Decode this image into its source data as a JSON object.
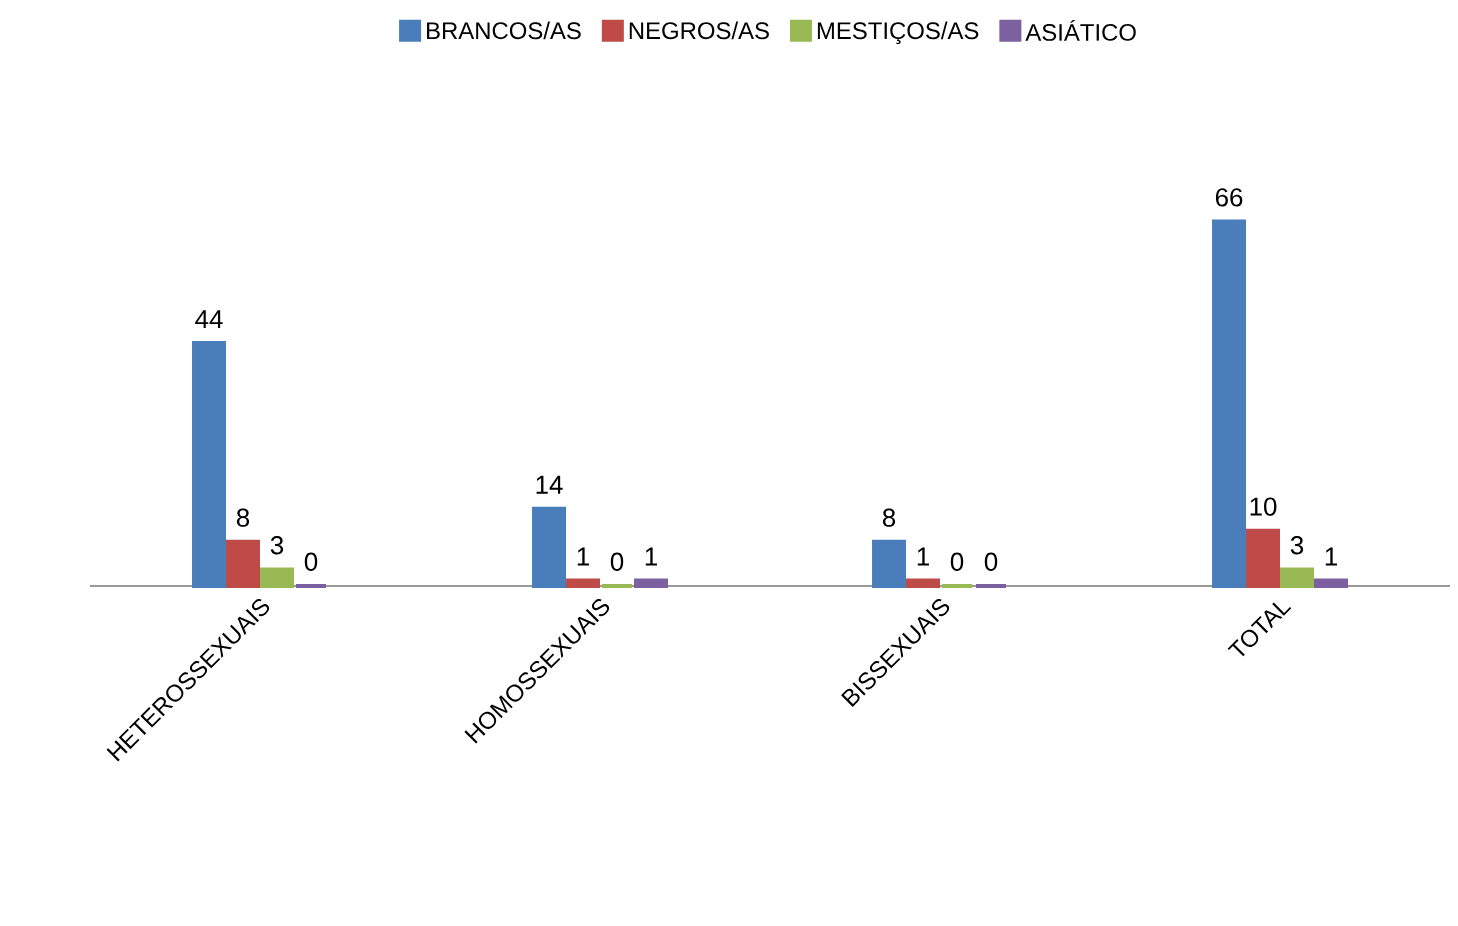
{
  "chart_data": {
    "type": "bar",
    "categories": [
      "HETEROSSEXUAIS",
      "HOMOSSEXUAIS",
      "BISSEXUAIS",
      "TOTAL"
    ],
    "series": [
      {
        "name": "BRANCOS/AS",
        "color": "#4a7ebb",
        "values": [
          44,
          14,
          8,
          66
        ]
      },
      {
        "name": "NEGROS/AS",
        "color": "#be4b48",
        "values": [
          8,
          1,
          1,
          10
        ]
      },
      {
        "name": "MESTIÇOS/AS",
        "color": "#98b954",
        "values": [
          3,
          0,
          0,
          3
        ]
      },
      {
        "name": "ASIÁTICO",
        "color": "#7d60a0",
        "values": [
          0,
          1,
          0,
          1
        ]
      }
    ],
    "data_labels": true,
    "legend": "top"
  }
}
